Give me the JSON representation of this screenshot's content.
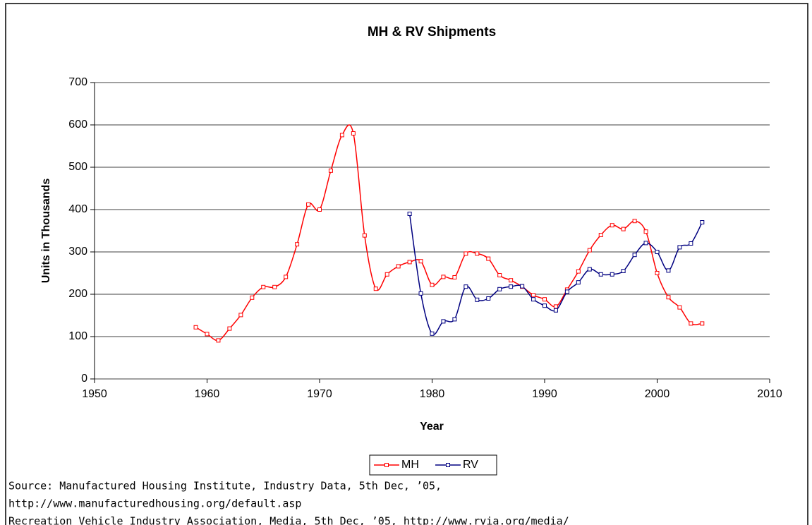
{
  "chart_data": {
    "type": "line",
    "title": "MH & RV Shipments",
    "x_label": "Year",
    "y_label": "Units in Thousands",
    "xlim": [
      1950,
      2010
    ],
    "xticks": [
      1950,
      1960,
      1970,
      1980,
      1990,
      2000,
      2010
    ],
    "ylim": [
      0,
      700
    ],
    "yticks": [
      0,
      100,
      200,
      300,
      400,
      500,
      600,
      700
    ],
    "grid": true,
    "legend": "bottom",
    "smooth": true,
    "series": [
      {
        "name": "MH",
        "color": "#ff0000",
        "x": [
          1959,
          1960,
          1961,
          1962,
          1963,
          1964,
          1965,
          1966,
          1967,
          1968,
          1969,
          1970,
          1971,
          1972,
          1973,
          1974,
          1975,
          1976,
          1977,
          1978,
          1979,
          1980,
          1981,
          1982,
          1983,
          1984,
          1985,
          1986,
          1987,
          1988,
          1989,
          1990,
          1991,
          1992,
          1993,
          1994,
          1995,
          1996,
          1997,
          1998,
          1999,
          2000,
          2001,
          2002,
          2003,
          2004
        ],
        "values": [
          122,
          106,
          91,
          119,
          151,
          192,
          217,
          217,
          241,
          318,
          412,
          400,
          492,
          576,
          580,
          339,
          213,
          247,
          266,
          276,
          278,
          222,
          241,
          240,
          296,
          296,
          284,
          245,
          233,
          218,
          198,
          188,
          171,
          211,
          254,
          304,
          340,
          363,
          354,
          373,
          348,
          250,
          193,
          169,
          131,
          131
        ]
      },
      {
        "name": "RV",
        "color": "#000080",
        "x": [
          1978,
          1979,
          1980,
          1981,
          1982,
          1983,
          1984,
          1985,
          1986,
          1987,
          1988,
          1989,
          1990,
          1991,
          1992,
          1993,
          1994,
          1995,
          1996,
          1997,
          1998,
          1999,
          2000,
          2001,
          2002,
          2003,
          2004
        ],
        "values": [
          390,
          202,
          107,
          136,
          141,
          218,
          187,
          190,
          212,
          218,
          219,
          188,
          173,
          162,
          206,
          228,
          259,
          247,
          247,
          255,
          293,
          321,
          300,
          256,
          311,
          320,
          370
        ]
      }
    ]
  },
  "notes": [
    "Source: Manufactured Housing Institute, Industry Data, 5th Dec, ’05,",
    "http://www.manufacturedhousing.org/default.asp",
    "Recreation Vehicle Industry Association, Media, 5th Dec, ’05, http://www.rvia.org/media/"
  ]
}
